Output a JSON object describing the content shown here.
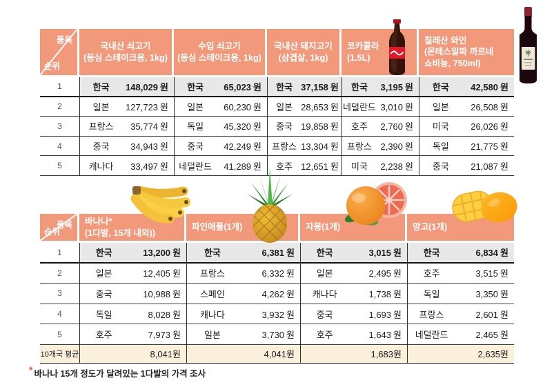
{
  "colors": {
    "header_bg": "#F2997B",
    "rank1_row_bg": "#E8E8E8",
    "average_row_bg": "#FAF0DC",
    "row_line": "#3c3c3c",
    "asterisk_accent": "#E8502E"
  },
  "corner": {
    "top_label": "품목",
    "bottom_label": "순위"
  },
  "ranks": [
    "1",
    "2",
    "3",
    "4",
    "5"
  ],
  "price_suffix": "원",
  "average_label": "10개국 평균",
  "footnote": {
    "asterisk": "*",
    "text": "바나나 15개 정도가 달려있는 1다발의 가격 조사"
  },
  "images": {
    "cola": "cola-bottle-image",
    "wine": "wine-bottle-image",
    "banana": "banana-bunch-image",
    "pineapple": "pineapple-image",
    "grapefruit": "grapefruit-image",
    "mango": "mango-image"
  },
  "tables": [
    {
      "id": "table-1",
      "columns": [
        {
          "title": "국내산 쇠고기",
          "subtitle": "(등심 스테이크용, 1kg)",
          "rows": [
            {
              "country": "한국",
              "price": "148,029"
            },
            {
              "country": "일본",
              "price": "127,723"
            },
            {
              "country": "프랑스",
              "price": "35,774"
            },
            {
              "country": "중국",
              "price": "34,943"
            },
            {
              "country": "캐나다",
              "price": "33,497"
            }
          ]
        },
        {
          "title": "수입 쇠고기",
          "subtitle": "(등심 스테이크용, 1kg)",
          "rows": [
            {
              "country": "한국",
              "price": "65,023"
            },
            {
              "country": "일본",
              "price": "60,230"
            },
            {
              "country": "독일",
              "price": "45,320"
            },
            {
              "country": "중국",
              "price": "42,249"
            },
            {
              "country": "네덜란드",
              "price": "41,289"
            }
          ]
        },
        {
          "title": "국내산 돼지고기",
          "subtitle": "(삼겹살, 1kg)",
          "rows": [
            {
              "country": "한국",
              "price": "37,158"
            },
            {
              "country": "일본",
              "price": "28,653"
            },
            {
              "country": "중국",
              "price": "19,858"
            },
            {
              "country": "프랑스",
              "price": "13,304"
            },
            {
              "country": "호주",
              "price": "12,651"
            }
          ]
        },
        {
          "title": "코카콜라",
          "subtitle": "(1.5L)",
          "image": "cola-bottle-image",
          "rows": [
            {
              "country": "한국",
              "price": "3,195"
            },
            {
              "country": "네덜란드",
              "price": "3,010"
            },
            {
              "country": "호주",
              "price": "2,760"
            },
            {
              "country": "프랑스",
              "price": "2,390"
            },
            {
              "country": "미국",
              "price": "2,238"
            }
          ]
        },
        {
          "title": "칠레산 와인",
          "subtitle": "(몬테스알파 까르네\n쇼비뇽, 750ml)",
          "image": "wine-bottle-image",
          "rows": [
            {
              "country": "한국",
              "price": "42,580"
            },
            {
              "country": "일본",
              "price": "26,508"
            },
            {
              "country": "미국",
              "price": "26,026"
            },
            {
              "country": "독일",
              "price": "21,775"
            },
            {
              "country": "중국",
              "price": "21,087"
            }
          ]
        }
      ]
    },
    {
      "id": "table-2",
      "columns": [
        {
          "title": "바나나*",
          "subtitle": "(1다발, 15개 내외))",
          "image": "banana-bunch-image",
          "rows": [
            {
              "country": "한국",
              "price": "13,200"
            },
            {
              "country": "일본",
              "price": "12,405"
            },
            {
              "country": "중국",
              "price": "10,988"
            },
            {
              "country": "독일",
              "price": "8,028"
            },
            {
              "country": "호주",
              "price": "7,973"
            }
          ],
          "average": "8,041"
        },
        {
          "title": "파인애플(1개)",
          "subtitle": "",
          "image": "pineapple-image",
          "rows": [
            {
              "country": "한국",
              "price": "6,381"
            },
            {
              "country": "프랑스",
              "price": "6,332"
            },
            {
              "country": "스페인",
              "price": "4,262"
            },
            {
              "country": "캐나다",
              "price": "3,932"
            },
            {
              "country": "일본",
              "price": "3,730"
            }
          ],
          "average": "4,041"
        },
        {
          "title": "자몽(1개)",
          "subtitle": "",
          "image": "grapefruit-image",
          "rows": [
            {
              "country": "한국",
              "price": "3,015"
            },
            {
              "country": "일본",
              "price": "2,495"
            },
            {
              "country": "캐나다",
              "price": "1,738"
            },
            {
              "country": "중국",
              "price": "1,693"
            },
            {
              "country": "호주",
              "price": "1,643"
            }
          ],
          "average": "1,683"
        },
        {
          "title": "망고(1개)",
          "subtitle": "",
          "image": "mango-image",
          "rows": [
            {
              "country": "한국",
              "price": "6,834"
            },
            {
              "country": "호주",
              "price": "3,515"
            },
            {
              "country": "독일",
              "price": "3,350"
            },
            {
              "country": "프랑스",
              "price": "2,601"
            },
            {
              "country": "네덜란드",
              "price": "2,465"
            }
          ],
          "average": "2,635"
        }
      ]
    }
  ]
}
